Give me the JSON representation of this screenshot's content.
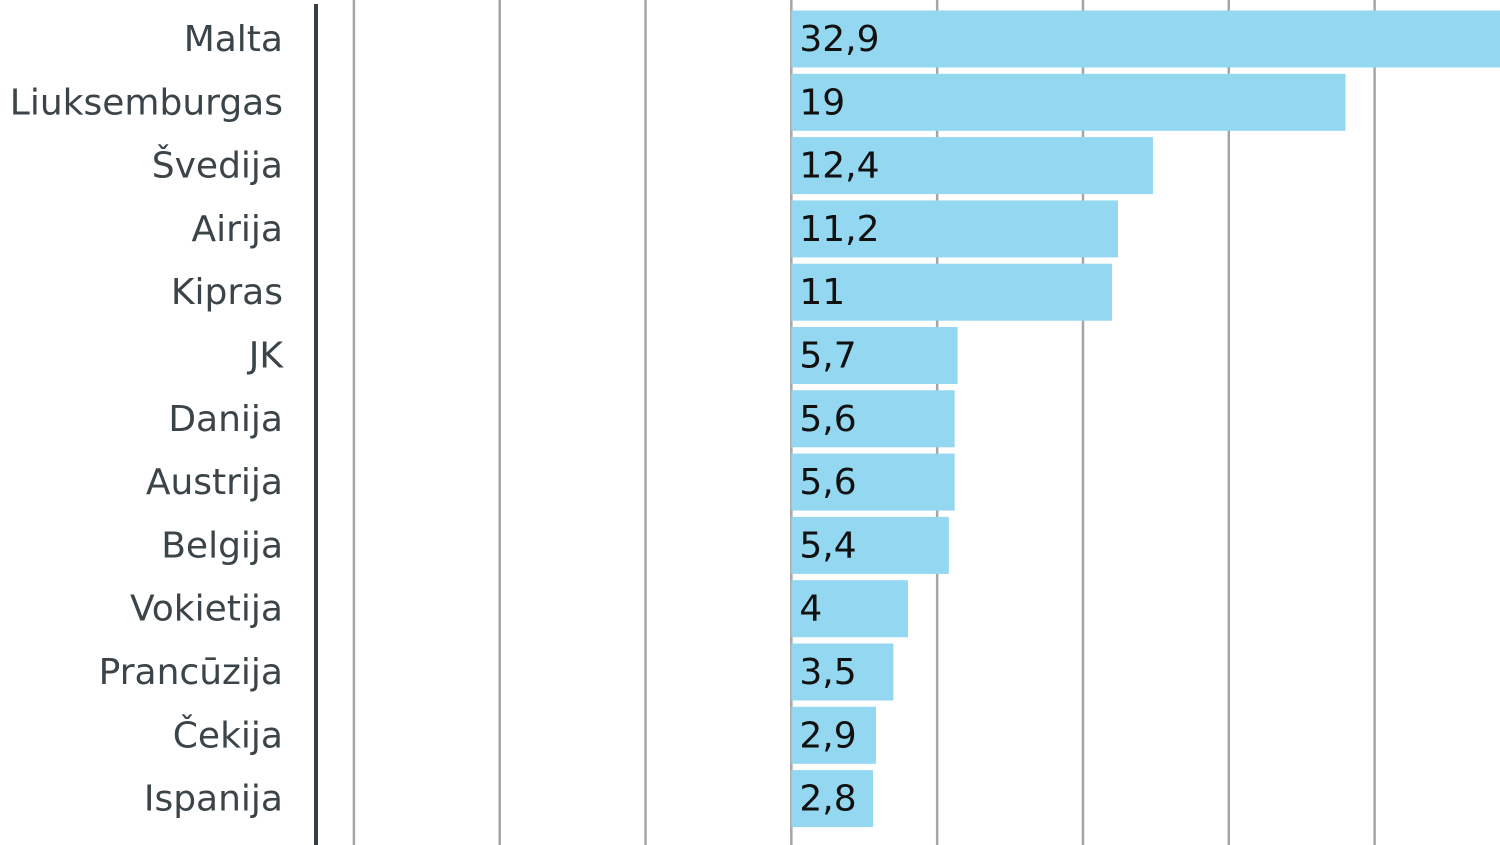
{
  "chart_data": {
    "type": "bar",
    "orientation": "horizontal",
    "categories": [
      "Malta",
      "Liuksemburgas",
      "Švedija",
      "Airija",
      "Kipras",
      "JK",
      "Danija",
      "Austrija",
      "Belgija",
      "Vokietija",
      "Prancūzija",
      "Čekija",
      "Ispanija"
    ],
    "values": [
      32.9,
      19,
      12.4,
      11.2,
      11,
      5.7,
      5.6,
      5.6,
      5.4,
      4,
      3.5,
      2.9,
      2.8
    ],
    "value_labels": [
      "32,9",
      "19",
      "12,4",
      "11,2",
      "11",
      "5,7",
      "5,6",
      "5,6",
      "5,4",
      "4",
      "3,5",
      "2,9",
      "2,8"
    ],
    "color": "#94d7f0",
    "xlim": [
      -16.3,
      24.3
    ],
    "xticks": [
      -15,
      -10,
      -5,
      0,
      5,
      10,
      15,
      20
    ],
    "grid": true
  }
}
